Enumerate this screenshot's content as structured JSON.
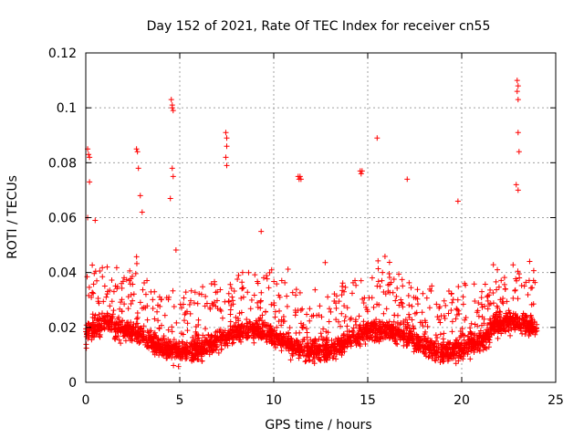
{
  "chart_data": {
    "type": "scatter",
    "title": "Day 152 of 2021, Rate Of TEC Index for receiver cn55",
    "xlabel": "GPS time / hours",
    "ylabel": "ROTI / TECUs",
    "xlim": [
      0,
      25
    ],
    "ylim": [
      0,
      0.12
    ],
    "x_ticks": [
      0,
      5,
      10,
      15,
      20,
      25
    ],
    "x_tick_labels": [
      "0",
      "5",
      "10",
      "15",
      "20",
      "25"
    ],
    "y_ticks": [
      0,
      0.02,
      0.04,
      0.06,
      0.08,
      0.1,
      0.12
    ],
    "y_tick_labels": [
      "0",
      "0.02",
      "0.04",
      "0.06",
      "0.08",
      "0.1",
      "0.12"
    ],
    "grid": true,
    "marker": "+",
    "color": "#ff0000",
    "series": [
      {
        "name": "ROTI",
        "description": "dense band of samples between ~0.005 and ~0.035 TECU/min over 0-24 h, with scattered outliers",
        "notable_points": [
          {
            "x": 0.1,
            "y": 0.085
          },
          {
            "x": 0.15,
            "y": 0.083
          },
          {
            "x": 0.2,
            "y": 0.082
          },
          {
            "x": 0.2,
            "y": 0.073
          },
          {
            "x": 0.1,
            "y": 0.06
          },
          {
            "x": 0.5,
            "y": 0.059
          },
          {
            "x": 2.7,
            "y": 0.085
          },
          {
            "x": 2.75,
            "y": 0.084
          },
          {
            "x": 2.8,
            "y": 0.078
          },
          {
            "x": 2.9,
            "y": 0.068
          },
          {
            "x": 3.0,
            "y": 0.062
          },
          {
            "x": 4.55,
            "y": 0.103
          },
          {
            "x": 4.6,
            "y": 0.101
          },
          {
            "x": 4.6,
            "y": 0.1
          },
          {
            "x": 4.65,
            "y": 0.099
          },
          {
            "x": 4.6,
            "y": 0.078
          },
          {
            "x": 4.65,
            "y": 0.075
          },
          {
            "x": 4.5,
            "y": 0.067
          },
          {
            "x": 7.45,
            "y": 0.091
          },
          {
            "x": 7.5,
            "y": 0.089
          },
          {
            "x": 7.5,
            "y": 0.086
          },
          {
            "x": 7.45,
            "y": 0.082
          },
          {
            "x": 7.5,
            "y": 0.079
          },
          {
            "x": 11.3,
            "y": 0.075
          },
          {
            "x": 11.35,
            "y": 0.074
          },
          {
            "x": 11.4,
            "y": 0.075
          },
          {
            "x": 11.45,
            "y": 0.074
          },
          {
            "x": 14.6,
            "y": 0.077
          },
          {
            "x": 14.65,
            "y": 0.076
          },
          {
            "x": 14.7,
            "y": 0.077
          },
          {
            "x": 15.5,
            "y": 0.089
          },
          {
            "x": 17.1,
            "y": 0.074
          },
          {
            "x": 19.8,
            "y": 0.066
          },
          {
            "x": 22.95,
            "y": 0.11
          },
          {
            "x": 23.0,
            "y": 0.108
          },
          {
            "x": 22.95,
            "y": 0.106
          },
          {
            "x": 23.0,
            "y": 0.103
          },
          {
            "x": 23.0,
            "y": 0.091
          },
          {
            "x": 23.05,
            "y": 0.084
          },
          {
            "x": 22.9,
            "y": 0.072
          },
          {
            "x": 23.0,
            "y": 0.07
          }
        ]
      }
    ]
  }
}
